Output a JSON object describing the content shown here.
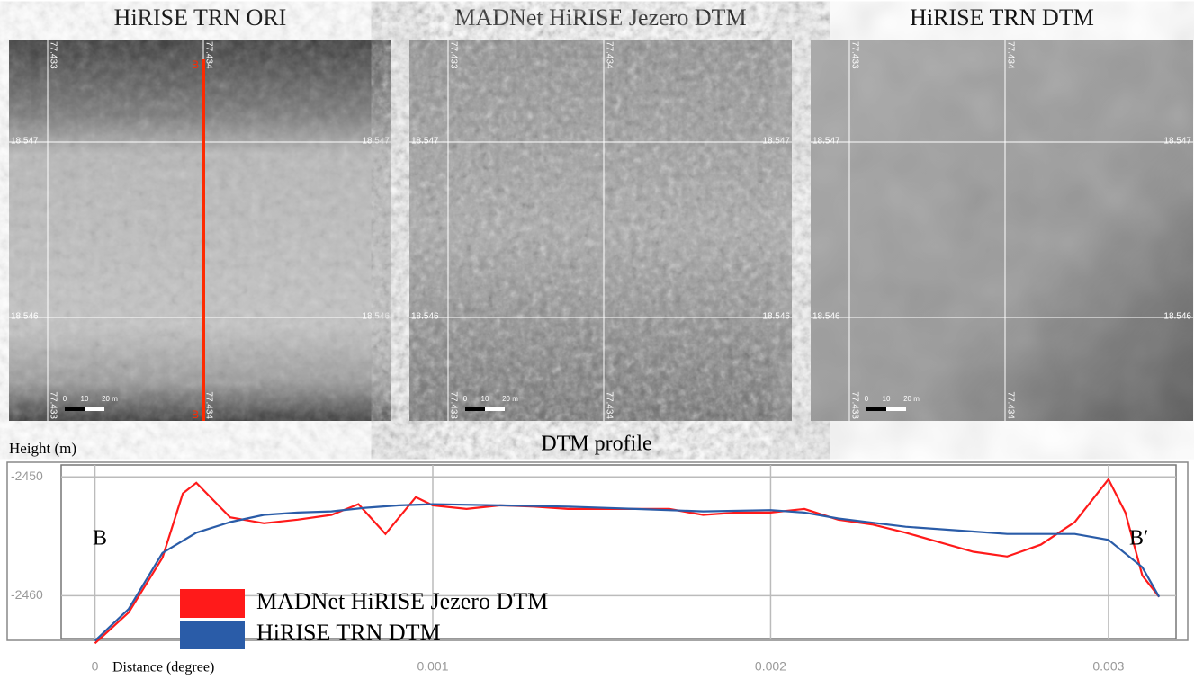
{
  "panels": [
    {
      "title": "HiRISE TRN ORI",
      "lon_top": [
        "77.433",
        "77.434"
      ],
      "lat_left": [
        "18.547",
        "18.546"
      ],
      "lat_right": [
        "18.547",
        "18.546"
      ],
      "lon_bottom": [
        "77.433",
        "77.434"
      ],
      "scale": [
        "0",
        "10",
        "20 m"
      ],
      "profile_ends": [
        "B",
        "B"
      ]
    },
    {
      "title": "MADNet HiRISE Jezero DTM",
      "lon_top": [
        "77.433",
        "77.434"
      ],
      "lat_left": [
        "18.547",
        "18.546"
      ],
      "lat_right": [
        "18.547",
        "18.546"
      ],
      "lon_bottom": [
        "77.433",
        "77.434"
      ],
      "scale": [
        "0",
        "10",
        "20 m"
      ]
    },
    {
      "title": "HiRISE TRN DTM",
      "lon_top": [
        "77.433",
        "77.434"
      ],
      "lat_left": [
        "18.547",
        "18.546"
      ],
      "lat_right": [
        "18.547",
        "18.546"
      ],
      "lon_bottom": [
        "77.433",
        "77.434"
      ],
      "scale": [
        "0",
        "10",
        "20 m"
      ]
    }
  ],
  "chart_data": {
    "type": "line",
    "title": "DTM profile",
    "y_label": "Height (m)",
    "x_label": "Distance (degree)",
    "annotations": [
      "B",
      "B′"
    ],
    "xlim": [
      -0.0001,
      0.0032
    ],
    "xticks": [
      0,
      0.001,
      0.002,
      0.003
    ],
    "ylim": [
      -2463.6,
      -2449
    ],
    "yticks": [
      -2460,
      -2450
    ],
    "grid": true,
    "series": [
      {
        "name": "MADNet HiRISE Jezero DTM",
        "color": "#ff1a1a",
        "x": [
          0,
          0.0001,
          0.0002,
          0.00026,
          0.0003,
          0.0004,
          0.0005,
          0.0006,
          0.0007,
          0.00078,
          0.00086,
          0.00095,
          0.001,
          0.0011,
          0.0012,
          0.0013,
          0.0014,
          0.0015,
          0.0016,
          0.0017,
          0.0018,
          0.0019,
          0.002,
          0.0021,
          0.0022,
          0.0023,
          0.0024,
          0.0025,
          0.0026,
          0.0027,
          0.0028,
          0.0029,
          0.003,
          0.00305,
          0.0031,
          0.00315
        ],
        "values": [
          -2464.0,
          -2461.4,
          -2456.8,
          -2451.4,
          -2450.5,
          -2453.4,
          -2453.9,
          -2453.6,
          -2453.2,
          -2452.3,
          -2454.8,
          -2451.7,
          -2452.4,
          -2452.7,
          -2452.4,
          -2452.5,
          -2452.7,
          -2452.7,
          -2452.7,
          -2452.7,
          -2453.2,
          -2453.0,
          -2453.0,
          -2452.7,
          -2453.6,
          -2454.0,
          -2454.7,
          -2455.5,
          -2456.3,
          -2456.7,
          -2455.7,
          -2453.8,
          -2450.2,
          -2453.0,
          -2458.3,
          -2460.1
        ]
      },
      {
        "name": "HiRISE TRN DTM",
        "color": "#2a5ca8",
        "x": [
          0,
          0.0001,
          0.0002,
          0.0003,
          0.0004,
          0.0005,
          0.0006,
          0.0007,
          0.0008,
          0.0009,
          0.001,
          0.0012,
          0.0014,
          0.0016,
          0.0018,
          0.002,
          0.0021,
          0.0022,
          0.0024,
          0.0026,
          0.0027,
          0.0028,
          0.0029,
          0.003,
          0.0031,
          0.00315
        ],
        "values": [
          -2463.8,
          -2461.1,
          -2456.4,
          -2454.7,
          -2453.8,
          -2453.2,
          -2453.0,
          -2452.9,
          -2452.6,
          -2452.4,
          -2452.3,
          -2452.4,
          -2452.5,
          -2452.7,
          -2452.9,
          -2452.8,
          -2453.0,
          -2453.5,
          -2454.2,
          -2454.6,
          -2454.8,
          -2454.8,
          -2454.8,
          -2455.3,
          -2457.6,
          -2460.1
        ]
      }
    ]
  }
}
